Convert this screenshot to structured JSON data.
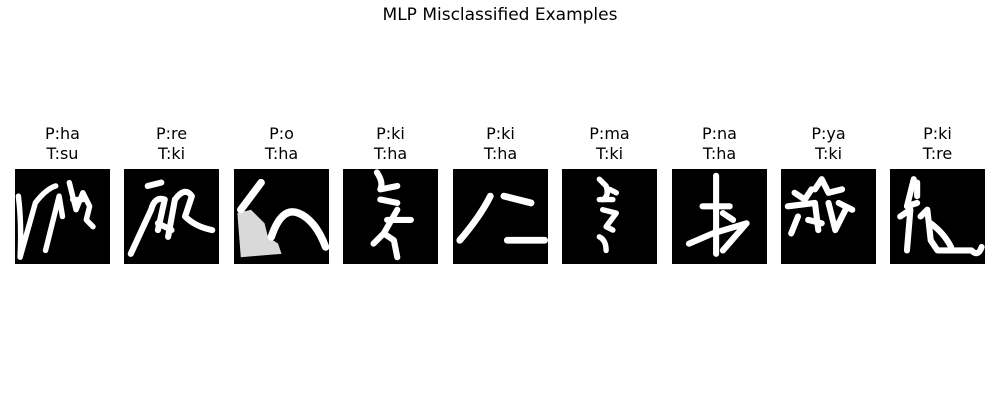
{
  "title": "MLP Misclassified Examples",
  "chart_data": {
    "type": "image-grid",
    "title": "MLP Misclassified Examples",
    "examples": [
      {
        "predicted": "P:ha",
        "true": "T:su"
      },
      {
        "predicted": "P:re",
        "true": "T:ki"
      },
      {
        "predicted": "P:o",
        "true": "T:ha"
      },
      {
        "predicted": "P:ki",
        "true": "T:ha"
      },
      {
        "predicted": "P:ki",
        "true": "T:ha"
      },
      {
        "predicted": "P:ma",
        "true": "T:ki"
      },
      {
        "predicted": "P:na",
        "true": "T:ha"
      },
      {
        "predicted": "P:ya",
        "true": "T:ki"
      },
      {
        "predicted": "P:ki",
        "true": "T:re"
      }
    ]
  }
}
